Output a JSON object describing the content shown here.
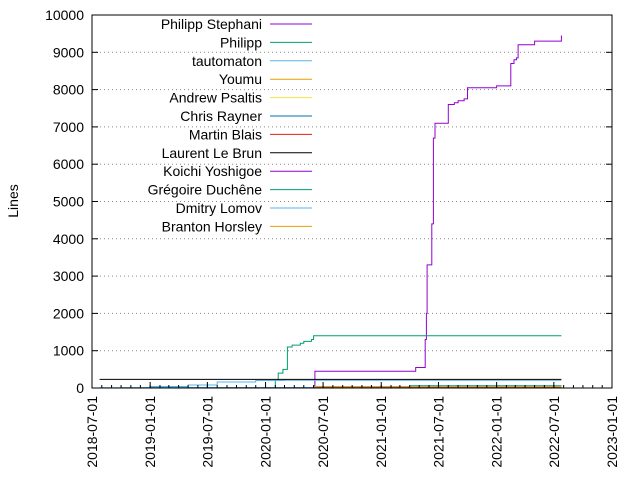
{
  "chart_data": {
    "type": "line",
    "ylabel": "Lines",
    "xlabel": "",
    "title": "",
    "xlim": [
      "2018-07-01",
      "2023-01-01"
    ],
    "ylim": [
      0,
      10000
    ],
    "yticks": [
      0,
      1000,
      2000,
      3000,
      4000,
      5000,
      6000,
      7000,
      8000,
      9000,
      10000
    ],
    "xticks": [
      "2018-07-01",
      "2019-01-01",
      "2019-07-01",
      "2020-01-01",
      "2020-07-01",
      "2021-01-01",
      "2021-07-01",
      "2022-01-01",
      "2022-07-01",
      "2023-01-01"
    ],
    "grid": "horizontal dotted",
    "legend_position": "top-left",
    "series": [
      {
        "name": "Philipp Stephani",
        "color": "#9400d3",
        "x": [
          "2020-05-25",
          "2020-06-01",
          "2020-06-05",
          "2021-04-01",
          "2021-04-20",
          "2021-05-15",
          "2021-05-20",
          "2021-05-24",
          "2021-05-26",
          "2021-06-05",
          "2021-06-10",
          "2021-06-15",
          "2021-06-20",
          "2021-07-15",
          "2021-08-01",
          "2021-08-20",
          "2021-09-01",
          "2021-09-20",
          "2021-10-01",
          "2021-12-01",
          "2022-01-01",
          "2022-02-15",
          "2022-02-25",
          "2022-03-05",
          "2022-03-10",
          "2022-05-01",
          "2022-07-25"
        ],
        "y": [
          0,
          50,
          450,
          450,
          550,
          550,
          1300,
          2000,
          3300,
          3300,
          4400,
          6700,
          7100,
          7100,
          7600,
          7650,
          7700,
          7750,
          8050,
          8050,
          8100,
          8700,
          8800,
          8850,
          9200,
          9300,
          9450
        ]
      },
      {
        "name": "Philipp",
        "color": "#009e73",
        "x": [
          "2020-01-20",
          "2020-02-01",
          "2020-02-10",
          "2020-02-25",
          "2020-03-10",
          "2020-03-25",
          "2020-04-20",
          "2020-05-01",
          "2020-05-25",
          "2020-06-01",
          "2022-07-25"
        ],
        "y": [
          0,
          200,
          400,
          500,
          1100,
          1150,
          1200,
          1250,
          1300,
          1400,
          1400
        ]
      },
      {
        "name": "tautomaton",
        "color": "#56b4e9",
        "x": [
          "2018-08-01",
          "2018-10-01",
          "2019-01-01",
          "2019-05-01",
          "2019-08-01",
          "2019-12-01",
          "2020-03-01",
          "2022-07-25"
        ],
        "y": [
          0,
          10,
          40,
          80,
          160,
          200,
          210,
          210
        ]
      },
      {
        "name": "Youmu",
        "color": "#e69f00",
        "x": [
          "2020-06-01",
          "2022-07-25"
        ],
        "y": [
          30,
          30
        ]
      },
      {
        "name": "Andrew Psaltis",
        "color": "#f0e442",
        "x": [
          "2020-06-01",
          "2022-07-25"
        ],
        "y": [
          20,
          20
        ]
      },
      {
        "name": "Chris Rayner",
        "color": "#0072b2",
        "x": [
          "2019-01-01",
          "2022-07-25"
        ],
        "y": [
          10,
          10
        ]
      },
      {
        "name": "Martin Blais",
        "color": "#e51e10",
        "x": [
          "2020-06-01",
          "2022-07-25"
        ],
        "y": [
          10,
          10
        ]
      },
      {
        "name": "Laurent Le Brun",
        "color": "#000000",
        "x": [
          "2018-07-25",
          "2022-07-25"
        ],
        "y": [
          230,
          230
        ]
      },
      {
        "name": "Koichi Yoshigoe",
        "color": "#9400d3",
        "x": [
          "2020-06-01",
          "2022-07-25"
        ],
        "y": [
          5,
          5
        ]
      },
      {
        "name": "Grégoire Duchêne",
        "color": "#009e73",
        "x": [
          "2021-04-01",
          "2022-07-25"
        ],
        "y": [
          60,
          60
        ]
      },
      {
        "name": "Dmitry Lomov",
        "color": "#56b4e9",
        "x": [
          "2018-07-25",
          "2022-07-25"
        ],
        "y": [
          5,
          5
        ]
      },
      {
        "name": "Branton Horsley",
        "color": "#e69f00",
        "x": [
          "2020-06-01",
          "2022-07-25"
        ],
        "y": [
          40,
          40
        ]
      }
    ]
  }
}
